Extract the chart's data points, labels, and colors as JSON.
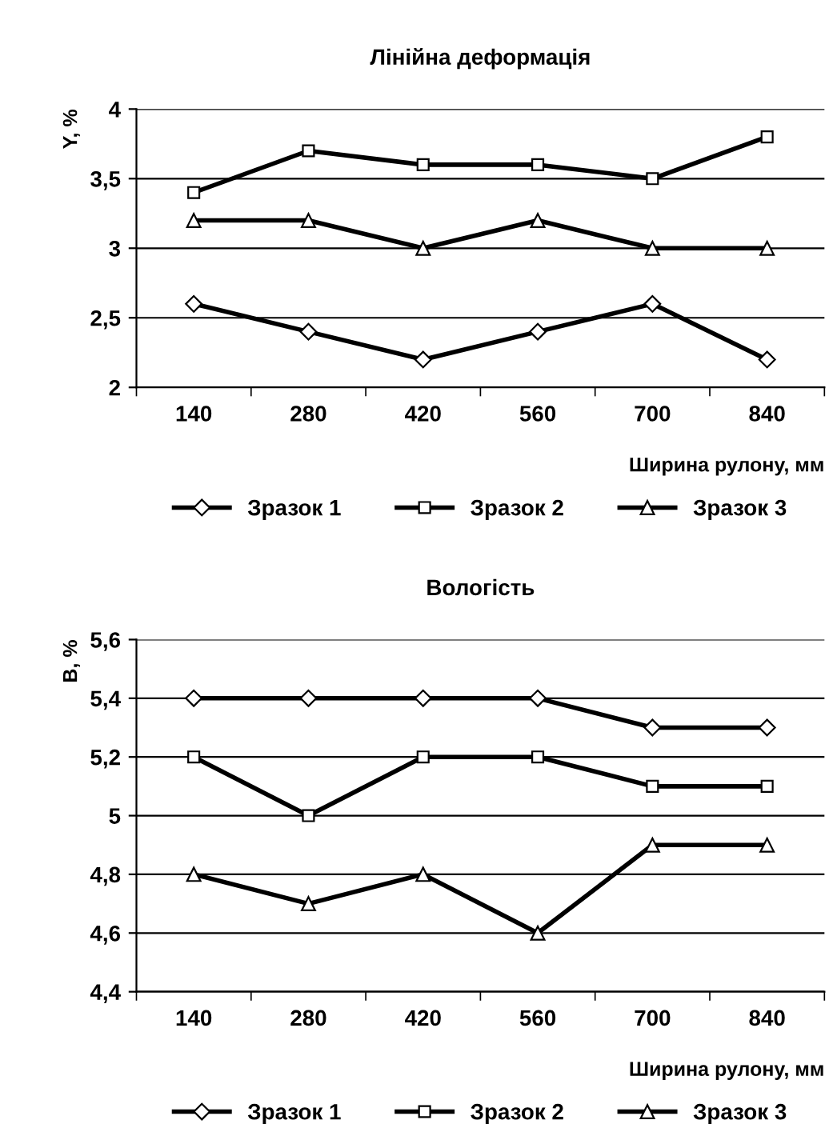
{
  "chart_data": [
    {
      "type": "line",
      "title": "Лінійна деформація",
      "xlabel": "Ширина рулону, мм",
      "ylabel": "Y, %",
      "categories": [
        "140",
        "280",
        "420",
        "560",
        "700",
        "840"
      ],
      "ylim": [
        2,
        4
      ],
      "yticks": [
        2,
        {
          "value": 2.5,
          "label": "2,5"
        },
        3,
        {
          "value": 3.5,
          "label": "3,5"
        },
        4
      ],
      "grid": "y",
      "legend": "bottom",
      "line_style": "solid",
      "series": [
        {
          "name": "Зразок 1",
          "color": "#000000",
          "marker": "diamond",
          "values": [
            2.6,
            2.4,
            2.2,
            2.4,
            2.6,
            2.2
          ]
        },
        {
          "name": "Зразок 2",
          "color": "#000000",
          "marker": "square",
          "values": [
            3.4,
            3.7,
            3.6,
            3.6,
            3.5,
            3.8
          ]
        },
        {
          "name": "Зразок 3",
          "color": "#000000",
          "marker": "triangle",
          "values": [
            3.2,
            3.2,
            3.0,
            3.2,
            3.0,
            3.0
          ]
        }
      ]
    },
    {
      "type": "line",
      "title": "Вологість",
      "xlabel": "Ширина рулону, мм",
      "ylabel": "B, %",
      "categories": [
        "140",
        "280",
        "420",
        "560",
        "700",
        "840"
      ],
      "ylim": [
        4.4,
        5.6
      ],
      "yticks": [
        {
          "value": 4.4,
          "label": "4,4"
        },
        {
          "value": 4.6,
          "label": "4,6"
        },
        {
          "value": 4.8,
          "label": "4,8"
        },
        5,
        {
          "value": 5.2,
          "label": "5,2"
        },
        {
          "value": 5.4,
          "label": "5,4"
        },
        {
          "value": 5.6,
          "label": "5,6"
        }
      ],
      "grid": "y",
      "legend": "bottom",
      "line_style": "solid",
      "series": [
        {
          "name": "Зразок 1",
          "color": "#000000",
          "marker": "diamond",
          "values": [
            5.4,
            5.4,
            5.4,
            5.4,
            5.3,
            5.3
          ]
        },
        {
          "name": "Зразок 2",
          "color": "#000000",
          "marker": "square",
          "values": [
            5.2,
            5.0,
            5.2,
            5.2,
            5.1,
            5.1
          ]
        },
        {
          "name": "Зразок 3",
          "color": "#000000",
          "marker": "triangle",
          "values": [
            4.8,
            4.7,
            4.8,
            4.6,
            4.9,
            4.9
          ]
        }
      ]
    }
  ]
}
